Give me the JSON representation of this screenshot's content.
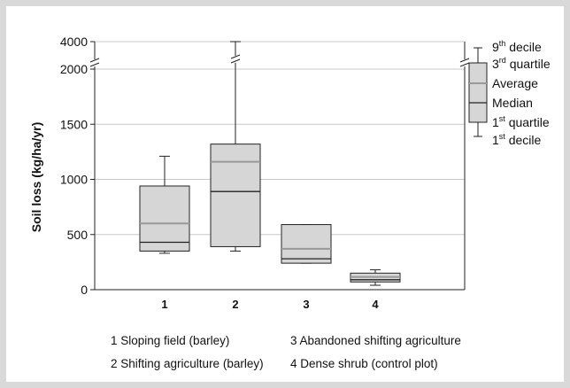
{
  "chart_data": {
    "type": "boxplot",
    "ylabel": "Soil loss (kg/ha/yr)",
    "y_ticks": [
      "0",
      "500",
      "1000",
      "1500",
      "2000",
      "4000"
    ],
    "y_axis_break": [
      2000,
      4000
    ],
    "grid": "horizontal",
    "categories": [
      "1",
      "2",
      "3",
      "4"
    ],
    "boxes": [
      {
        "category": "1",
        "decile1": 330,
        "quartile1": 350,
        "median": 430,
        "average": 600,
        "quartile3": 940,
        "decile9": 1210
      },
      {
        "category": "2",
        "decile1": 350,
        "quartile1": 390,
        "median": 890,
        "average": 1160,
        "quartile3": 1320,
        "decile9": 4000
      },
      {
        "category": "3",
        "decile1": 240,
        "quartile1": 240,
        "median": 280,
        "average": 370,
        "quartile3": 590,
        "decile9": 590
      },
      {
        "category": "4",
        "decile1": 40,
        "quartile1": 70,
        "median": 90,
        "average": 115,
        "quartile3": 150,
        "decile9": 180
      }
    ],
    "legend": {
      "position": "right",
      "items": [
        {
          "base": "9",
          "sup": "th",
          "text": " decile"
        },
        {
          "base": "3",
          "sup": "rd",
          "text": " quartile"
        },
        {
          "base": "",
          "sup": "",
          "text": "Average"
        },
        {
          "base": "",
          "sup": "",
          "text": "Median"
        },
        {
          "base": "1",
          "sup": "st",
          "text": " quartile"
        },
        {
          "base": "1",
          "sup": "st",
          "text": " decile"
        }
      ]
    },
    "category_notes": [
      "1 Sloping field (barley)",
      "2 Shifting agriculture (barley)",
      "3 Abandoned shifting agriculture",
      "4 Dense shrub (control plot)"
    ],
    "colors": {
      "box_fill": "#d6d6d6",
      "average_line": "#999999",
      "line": "#222222",
      "grid": "#c8c8c8"
    }
  }
}
